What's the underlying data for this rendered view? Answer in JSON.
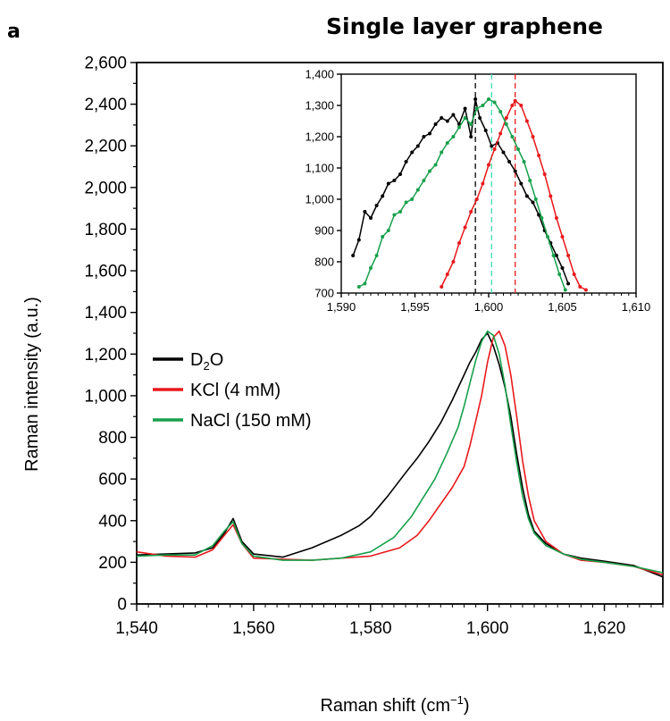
{
  "panel_label": "a",
  "chart_data": [
    {
      "type": "line",
      "title": "Single layer graphene",
      "xlabel": "Raman shift (cm",
      "xlabel_sup": "−1",
      "xlabel_end": ")",
      "ylabel": "Raman intensity (a.u.)",
      "xlim": [
        1540,
        1630
      ],
      "ylim": [
        0,
        2600
      ],
      "xticks": [
        1540,
        1560,
        1580,
        1600,
        1620
      ],
      "xtick_labels": [
        "1,540",
        "1,560",
        "1,580",
        "1,600",
        "1,620"
      ],
      "yticks": [
        0,
        200,
        400,
        600,
        800,
        1000,
        1200,
        1400,
        1600,
        1800,
        2000,
        2200,
        2400,
        2600
      ],
      "ytick_labels": [
        "0",
        "200",
        "400",
        "600",
        "800",
        "1,000",
        "1,200",
        "1,400",
        "1,600",
        "1,800",
        "2,000",
        "2,200",
        "2,400",
        "2,600"
      ],
      "legend": {
        "position": "left-middle"
      },
      "series": [
        {
          "name": "D",
          "name_sub": "2",
          "name_end": "O",
          "color": "#000000",
          "x": [
            1540,
            1545,
            1550,
            1553,
            1555,
            1556.5,
            1558,
            1560,
            1565,
            1570,
            1575,
            1578,
            1580,
            1583,
            1586,
            1588,
            1590,
            1592,
            1594,
            1596,
            1597,
            1598,
            1599,
            1600,
            1601,
            1602,
            1603,
            1604,
            1605,
            1606,
            1607,
            1608,
            1610,
            1613,
            1616,
            1620,
            1625,
            1630
          ],
          "y": [
            235,
            240,
            245,
            270,
            340,
            410,
            300,
            240,
            225,
            270,
            330,
            375,
            420,
            520,
            630,
            700,
            780,
            870,
            980,
            1100,
            1160,
            1210,
            1270,
            1300,
            1240,
            1150,
            1040,
            900,
            720,
            560,
            430,
            350,
            290,
            240,
            220,
            205,
            185,
            130
          ]
        },
        {
          "name": "KCl (4 mM)",
          "color": "#e8191c",
          "x": [
            1540,
            1545,
            1550,
            1553,
            1555,
            1556.5,
            1558,
            1560,
            1565,
            1570,
            1575,
            1580,
            1585,
            1588,
            1590,
            1592,
            1594,
            1596,
            1597,
            1598,
            1599,
            1600,
            1601,
            1602,
            1603,
            1604,
            1605,
            1606,
            1607,
            1608,
            1610,
            1613,
            1616,
            1620,
            1625,
            1630
          ],
          "y": [
            250,
            230,
            225,
            260,
            330,
            380,
            290,
            220,
            215,
            210,
            220,
            230,
            270,
            330,
            400,
            480,
            560,
            660,
            760,
            880,
            1000,
            1160,
            1280,
            1310,
            1240,
            1100,
            900,
            690,
            520,
            400,
            300,
            240,
            210,
            200,
            180,
            140
          ]
        },
        {
          "name": "NaCl (150 mM)",
          "color": "#17a04b",
          "x": [
            1540,
            1545,
            1550,
            1553,
            1555,
            1556.5,
            1558,
            1560,
            1565,
            1570,
            1575,
            1580,
            1584,
            1587,
            1589,
            1591,
            1593,
            1595,
            1596,
            1597,
            1598,
            1599,
            1600,
            1601,
            1602,
            1603,
            1604,
            1605,
            1606,
            1607,
            1608,
            1610,
            1613,
            1616,
            1620,
            1625,
            1630
          ],
          "y": [
            230,
            235,
            235,
            280,
            350,
            395,
            290,
            230,
            210,
            210,
            220,
            250,
            320,
            420,
            510,
            600,
            720,
            850,
            950,
            1060,
            1170,
            1260,
            1310,
            1290,
            1200,
            1050,
            860,
            680,
            520,
            410,
            340,
            280,
            240,
            215,
            200,
            180,
            150
          ]
        }
      ]
    },
    {
      "type": "line",
      "title": "",
      "xlim": [
        1590,
        1610
      ],
      "ylim": [
        700,
        1400
      ],
      "xticks": [
        1590,
        1595,
        1600,
        1605,
        1610
      ],
      "xtick_labels": [
        "1,590",
        "1,595",
        "1,600",
        "1,605",
        "1,610"
      ],
      "yticks": [
        700,
        800,
        900,
        1000,
        1100,
        1200,
        1300,
        1400
      ],
      "ytick_labels": [
        "700",
        "800",
        "900",
        "1,000",
        "1,100",
        "1,200",
        "1,300",
        "1,400"
      ],
      "reference_lines": [
        {
          "x": 1599.1,
          "color": "#000000"
        },
        {
          "x": 1600.2,
          "color": "#3ddcb0"
        },
        {
          "x": 1601.8,
          "color": "#e8191c"
        }
      ],
      "series": [
        {
          "name": "D2O",
          "color": "#000000",
          "x": [
            1590.8,
            1591.2,
            1591.6,
            1592,
            1592.4,
            1592.8,
            1593.2,
            1593.6,
            1594,
            1594.4,
            1594.8,
            1595.2,
            1595.6,
            1596,
            1596.4,
            1596.8,
            1597.2,
            1597.6,
            1598,
            1598.4,
            1598.8,
            1599.1,
            1599.4,
            1599.8,
            1600.2,
            1600.6,
            1601,
            1601.4,
            1601.8,
            1602.2,
            1602.6,
            1603,
            1603.4,
            1603.8,
            1604.2,
            1604.6,
            1605,
            1605.4
          ],
          "y": [
            820,
            870,
            960,
            940,
            980,
            1010,
            1050,
            1060,
            1080,
            1120,
            1150,
            1170,
            1200,
            1210,
            1240,
            1260,
            1250,
            1270,
            1240,
            1290,
            1200,
            1320,
            1260,
            1220,
            1170,
            1180,
            1150,
            1120,
            1090,
            1050,
            1010,
            990,
            950,
            900,
            860,
            820,
            780,
            730
          ]
        },
        {
          "name": "KCl (4 mM)",
          "color": "#e8191c",
          "x": [
            1596.8,
            1597.2,
            1597.6,
            1598,
            1598.4,
            1598.8,
            1599.2,
            1599.6,
            1600,
            1600.4,
            1600.8,
            1601.2,
            1601.6,
            1601.8,
            1602.2,
            1602.6,
            1603,
            1603.4,
            1603.8,
            1604.2,
            1604.6,
            1605,
            1605.4,
            1605.8,
            1606.2,
            1606.6
          ],
          "y": [
            720,
            760,
            800,
            860,
            910,
            960,
            1000,
            1050,
            1110,
            1160,
            1210,
            1260,
            1300,
            1315,
            1300,
            1250,
            1200,
            1140,
            1080,
            1010,
            940,
            880,
            820,
            760,
            720,
            710
          ]
        },
        {
          "name": "NaCl (150 mM)",
          "color": "#17a04b",
          "x": [
            1591.2,
            1591.6,
            1592,
            1592.4,
            1592.8,
            1593.2,
            1593.6,
            1594,
            1594.4,
            1594.8,
            1595.2,
            1595.6,
            1596,
            1596.4,
            1596.8,
            1597.2,
            1597.6,
            1598,
            1598.4,
            1598.8,
            1599.2,
            1599.6,
            1600,
            1600.4,
            1600.8,
            1601.2,
            1601.6,
            1602,
            1602.4,
            1602.8,
            1603.2,
            1603.6,
            1604,
            1604.4,
            1604.8,
            1605.2
          ],
          "y": [
            720,
            730,
            780,
            820,
            880,
            900,
            950,
            960,
            990,
            1000,
            1030,
            1060,
            1090,
            1110,
            1150,
            1180,
            1200,
            1230,
            1260,
            1240,
            1290,
            1300,
            1320,
            1310,
            1280,
            1240,
            1200,
            1160,
            1120,
            1060,
            1000,
            940,
            880,
            820,
            760,
            710
          ]
        }
      ]
    }
  ]
}
